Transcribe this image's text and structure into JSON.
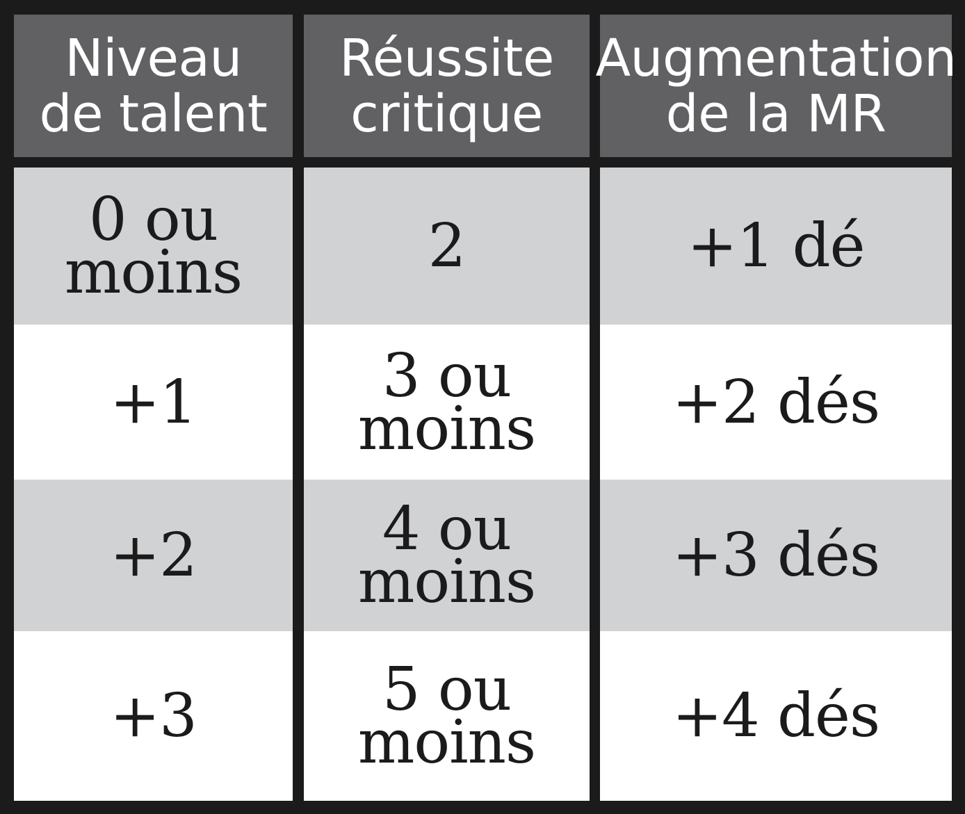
{
  "table": {
    "headers": [
      "Niveau\nde talent",
      "Réussite\ncritique",
      "Augmentation\nde la MR"
    ],
    "rows": [
      [
        "0 ou\nmoins",
        "2",
        "+1 dé"
      ],
      [
        "+1",
        "3 ou\nmoins",
        "+2 dés"
      ],
      [
        "+2",
        "4 ou\nmoins",
        "+3 dés"
      ],
      [
        "+3",
        "5 ou\nmoins",
        "+4 dés"
      ]
    ],
    "colors": {
      "border": "#1c1b1c",
      "header_background": "#616164",
      "header_text": "#ffffff",
      "shaded_row": "#d1d2d4",
      "plain_row": "#ffffff"
    }
  }
}
